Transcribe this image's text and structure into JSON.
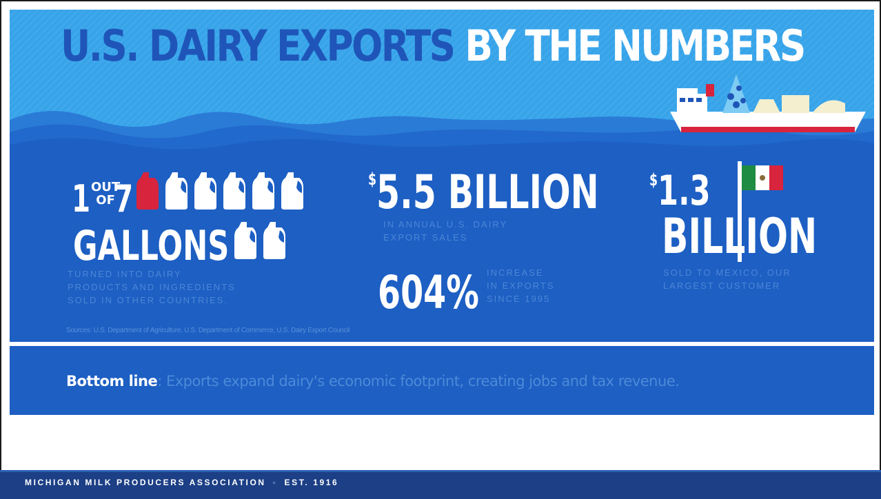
{
  "title": {
    "part1": "U.S. DAIRY EXPORTS",
    "part2": "BY THE NUMBERS"
  },
  "stat_gallons": {
    "one": "1",
    "out": "OUT",
    "of": "OF",
    "seven": "7",
    "unit": "GALLONS",
    "caption_lines": [
      "TURNED INTO DAIRY",
      "PRODUCTS AND INGREDIENTS",
      "SOLD IN OTHER COUNTRIES."
    ]
  },
  "stat_sales": {
    "currency": "$",
    "value": "5.5 BILLION",
    "caption_lines": [
      "IN ANNUAL U.S. DAIRY",
      "EXPORT SALES"
    ]
  },
  "stat_increase": {
    "value": "604%",
    "caption_lines": [
      "INCREASE",
      "IN EXPORTS",
      "SINCE 1995"
    ]
  },
  "stat_mexico": {
    "currency": "$",
    "value_line1": "1.3",
    "value_line2": "BILLION",
    "caption_lines": [
      "SOLD TO MEXICO, OUR",
      "LARGEST CUSTOMER"
    ]
  },
  "sources": "Sources: U.S. Department of Agriculture, U.S. Department of Commerce, U.S. Dairy Export Council",
  "bottom_line": {
    "label": "Bottom line",
    "text": ": Exports expand dairy's economic footprint, creating jobs and tax revenue."
  },
  "footer": {
    "org": "MICHIGAN MILK PRODUCERS ASSOCIATION",
    "est": "EST. 1916"
  },
  "icons": {
    "jug": "milk-jug-icon",
    "ship": "cargo-ship-icon",
    "flag": "mexico-flag-icon"
  },
  "colors": {
    "sky": "#37a4ea",
    "sea": "#1d5fc3",
    "title_dark": "#1f55b8",
    "highlight_jug": "#d8243c",
    "caption": "#4d86d6",
    "footer": "#1c3f86"
  }
}
